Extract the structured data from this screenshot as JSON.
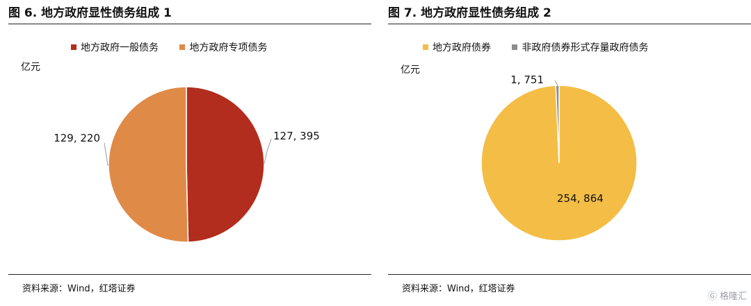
{
  "left": {
    "title": "图 6. 地方政府显性债务组成 1",
    "unit": "亿元",
    "source": "资料来源：Wind，红塔证券",
    "chart_data": {
      "type": "pie",
      "categories": [
        "地方政府一般债务",
        "地方政府专项债务"
      ],
      "values": [
        127395,
        129220
      ],
      "labels": [
        "127, 395",
        "129, 220"
      ],
      "colors": [
        "#b22d1e",
        "#e08a47"
      ],
      "legend": "top"
    }
  },
  "right": {
    "title": "图 7. 地方政府显性债务组成 2",
    "unit": "亿元",
    "source": "资料来源：Wind，红塔证券",
    "chart_data": {
      "type": "pie",
      "categories": [
        "地方政府债券",
        "非政府债券形式存量政府债务"
      ],
      "values": [
        254864,
        1751
      ],
      "labels": [
        "254, 864",
        "1, 751"
      ],
      "colors": [
        "#f4bd45",
        "#8c8c8c"
      ],
      "legend": "top"
    }
  },
  "watermark": "格隆汇"
}
